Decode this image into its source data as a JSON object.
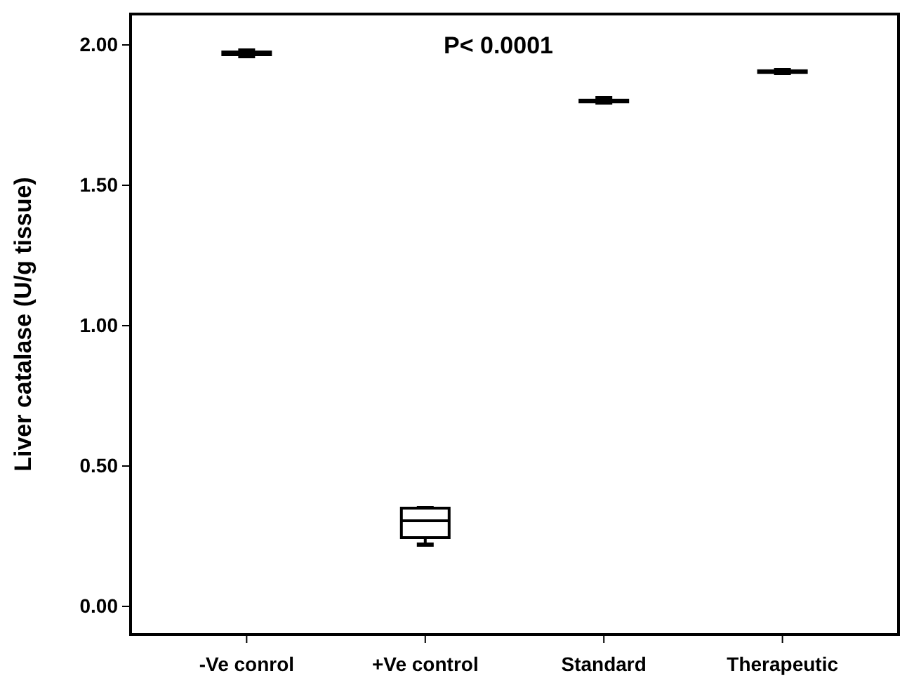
{
  "chart_data": {
    "type": "box",
    "ylabel": "Liver catalase (U/g tissue)",
    "categories": [
      "-Ve conrol",
      "+Ve control",
      "Standard",
      "Therapeutic"
    ],
    "boxes": [
      {
        "low": 1.96,
        "q1": 1.965,
        "median": 1.97,
        "q3": 1.975,
        "high": 1.98
      },
      {
        "low": 0.22,
        "q1": 0.245,
        "median": 0.305,
        "q3": 0.35,
        "high": 0.35
      },
      {
        "low": 1.795,
        "q1": 1.797,
        "median": 1.8,
        "q3": 1.803,
        "high": 1.81
      },
      {
        "low": 1.9,
        "q1": 1.902,
        "median": 1.905,
        "q3": 1.908,
        "high": 1.91
      }
    ],
    "ylim": [
      -0.1,
      2.11
    ],
    "yticks": [
      {
        "value": 0,
        "label": "0.00"
      },
      {
        "value": 0.5,
        "label": "0.50"
      },
      {
        "value": 1,
        "label": "1.00"
      },
      {
        "value": 1.5,
        "label": "1.50"
      },
      {
        "value": 2,
        "label": "2.00"
      }
    ],
    "annotations": [
      "P< 0.0001"
    ],
    "grid": false
  }
}
